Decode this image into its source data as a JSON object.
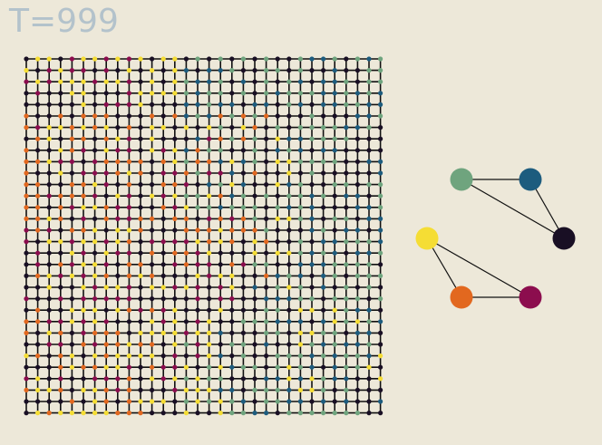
{
  "title": "T=999",
  "background": "#ede8d9",
  "title_color": "#b3c2cb",
  "edge_color": "#111111",
  "palette": [
    {
      "name": "sage",
      "color": "#6fa47e"
    },
    {
      "name": "teal-blue",
      "color": "#1d5c7e"
    },
    {
      "name": "dark-plum",
      "color": "#190f24"
    },
    {
      "name": "yellow",
      "color": "#f5dd34"
    },
    {
      "name": "orange",
      "color": "#e2681f"
    },
    {
      "name": "crimson",
      "color": "#8c0d4e"
    }
  ],
  "lattice": {
    "rows": 32,
    "cols": 32,
    "random_seed": 999,
    "regions": [
      {
        "color_index": 3,
        "row_from": 0,
        "row_to": 5,
        "col_from": 0,
        "col_to": 14,
        "weight": 0.55
      },
      {
        "color_index": 5,
        "row_from": 0,
        "row_to": 5,
        "col_from": 0,
        "col_to": 14,
        "weight": 0.25
      },
      {
        "color_index": 4,
        "row_from": 5,
        "row_to": 20,
        "col_from": 0,
        "col_to": 22,
        "weight": 0.45
      },
      {
        "color_index": 3,
        "row_from": 6,
        "row_to": 21,
        "col_from": 2,
        "col_to": 24,
        "weight": 0.4
      },
      {
        "color_index": 5,
        "row_from": 6,
        "row_to": 22,
        "col_from": 0,
        "col_to": 20,
        "weight": 0.3
      },
      {
        "color_index": 0,
        "row_from": 0,
        "row_to": 14,
        "col_from": 14,
        "col_to": 32,
        "weight": 0.6
      },
      {
        "color_index": 1,
        "row_from": 0,
        "row_to": 14,
        "col_from": 14,
        "col_to": 32,
        "weight": 0.45
      },
      {
        "color_index": 0,
        "row_from": 12,
        "row_to": 24,
        "col_from": 18,
        "col_to": 32,
        "weight": 0.55
      },
      {
        "color_index": 1,
        "row_from": 12,
        "row_to": 24,
        "col_from": 20,
        "col_to": 32,
        "weight": 0.35
      },
      {
        "color_index": 3,
        "row_from": 22,
        "row_to": 32,
        "col_from": 0,
        "col_to": 18,
        "weight": 0.6
      },
      {
        "color_index": 4,
        "row_from": 22,
        "row_to": 32,
        "col_from": 0,
        "col_to": 12,
        "weight": 0.45
      },
      {
        "color_index": 5,
        "row_from": 22,
        "row_to": 30,
        "col_from": 0,
        "col_to": 16,
        "weight": 0.3
      },
      {
        "color_index": 0,
        "row_from": 24,
        "row_to": 32,
        "col_from": 14,
        "col_to": 32,
        "weight": 0.5
      },
      {
        "color_index": 1,
        "row_from": 24,
        "row_to": 32,
        "col_from": 16,
        "col_to": 32,
        "weight": 0.3
      },
      {
        "color_index": 3,
        "row_from": 22,
        "row_to": 30,
        "col_from": 22,
        "col_to": 32,
        "weight": 0.35
      }
    ],
    "base_weights": [
      {
        "color_index": 2,
        "weight": 1.0
      }
    ]
  },
  "legend_graph": {
    "nodes": [
      {
        "id": "n-sage",
        "color_index": 0
      },
      {
        "id": "n-teal",
        "color_index": 1
      },
      {
        "id": "n-plum",
        "color_index": 2
      },
      {
        "id": "n-yellow",
        "color_index": 3
      },
      {
        "id": "n-orange",
        "color_index": 4
      },
      {
        "id": "n-crimson",
        "color_index": 5
      }
    ],
    "edges": [
      [
        "n-sage",
        "n-teal"
      ],
      [
        "n-sage",
        "n-plum"
      ],
      [
        "n-teal",
        "n-plum"
      ],
      [
        "n-yellow",
        "n-orange"
      ],
      [
        "n-yellow",
        "n-crimson"
      ],
      [
        "n-orange",
        "n-crimson"
      ]
    ]
  }
}
